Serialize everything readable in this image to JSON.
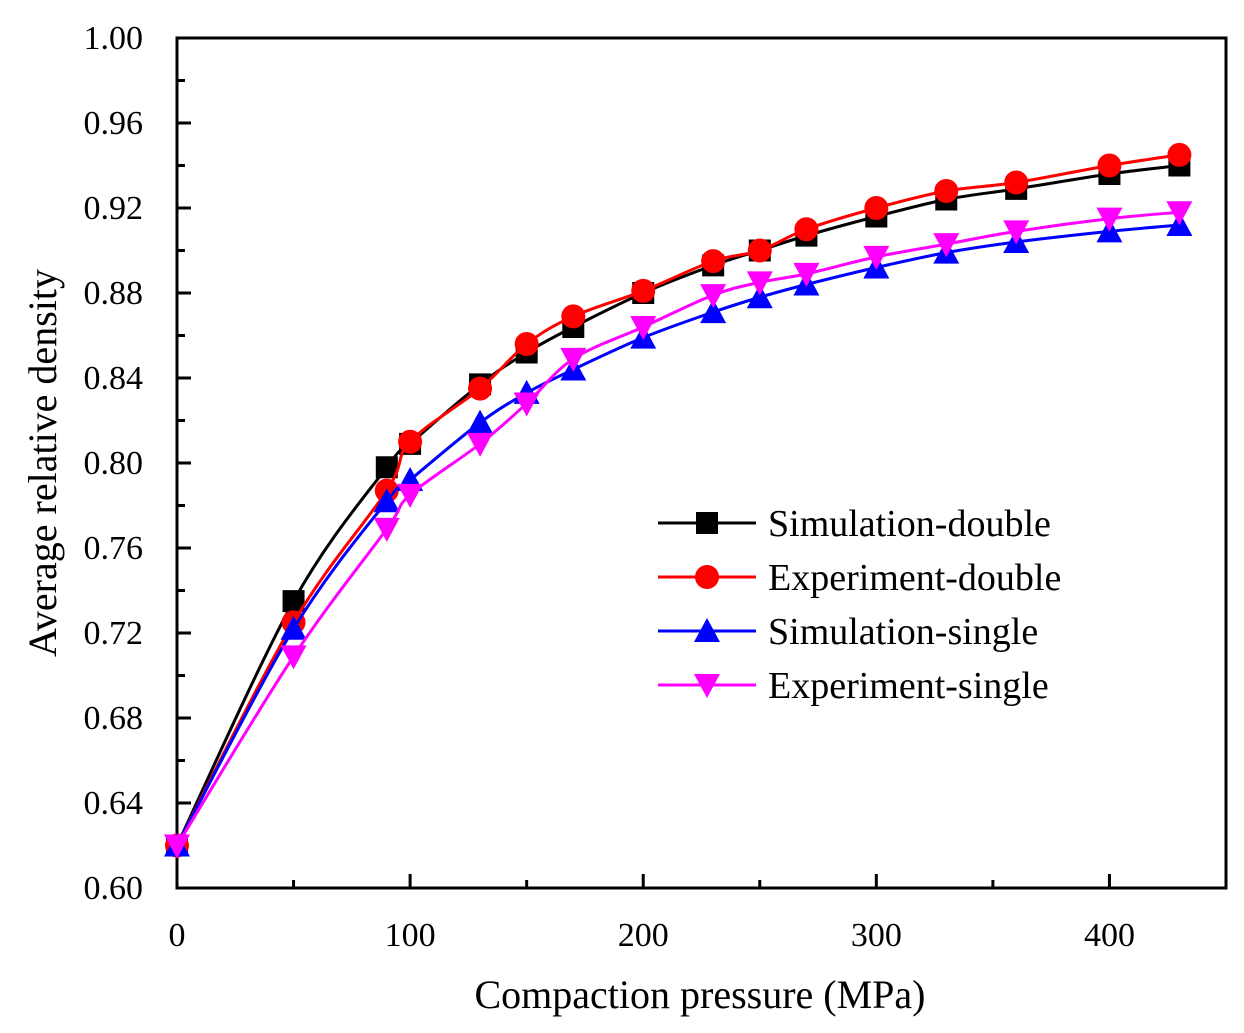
{
  "chart_data": {
    "type": "line",
    "title": "",
    "xlabel": "Compaction pressure (MPa)",
    "ylabel": "Average relative density",
    "xlim": [
      0,
      450
    ],
    "ylim": [
      0.6,
      1.0
    ],
    "x_ticks": [
      0,
      100,
      200,
      300,
      400
    ],
    "x_tick_labels": [
      "0",
      "100",
      "200",
      "300",
      "400"
    ],
    "y_ticks": [
      0.6,
      0.64,
      0.68,
      0.72,
      0.76,
      0.8,
      0.84,
      0.88,
      0.92,
      0.96,
      1.0
    ],
    "y_tick_labels": [
      "0.60",
      "0.64",
      "0.68",
      "0.72",
      "0.76",
      "0.80",
      "0.84",
      "0.88",
      "0.92",
      "0.96",
      "1.00"
    ],
    "grid": false,
    "legend_position": "right",
    "series": [
      {
        "name": "Simulation-double",
        "color": "#000000",
        "marker": "square",
        "x": [
          0,
          50,
          90,
          100,
          130,
          150,
          170,
          200,
          230,
          250,
          270,
          300,
          330,
          360,
          400,
          430
        ],
        "values": [
          0.62,
          0.735,
          0.798,
          0.809,
          0.837,
          0.852,
          0.864,
          0.88,
          0.893,
          0.9,
          0.907,
          0.916,
          0.924,
          0.929,
          0.936,
          0.94
        ]
      },
      {
        "name": "Experiment-double",
        "color": "#ff0000",
        "marker": "circle",
        "x": [
          0,
          50,
          90,
          100,
          130,
          150,
          170,
          200,
          230,
          250,
          270,
          300,
          330,
          360,
          400,
          430
        ],
        "values": [
          0.62,
          0.725,
          0.787,
          0.81,
          0.835,
          0.856,
          0.869,
          0.881,
          0.895,
          0.9,
          0.91,
          0.92,
          0.928,
          0.932,
          0.94,
          0.945
        ]
      },
      {
        "name": "Simulation-single",
        "color": "#0000ff",
        "marker": "triangle-up",
        "x": [
          0,
          50,
          90,
          100,
          130,
          150,
          170,
          200,
          230,
          250,
          270,
          300,
          330,
          360,
          400,
          430
        ],
        "values": [
          0.62,
          0.722,
          0.782,
          0.792,
          0.819,
          0.833,
          0.844,
          0.859,
          0.871,
          0.878,
          0.884,
          0.892,
          0.899,
          0.904,
          0.909,
          0.912
        ]
      },
      {
        "name": "Experiment-single",
        "color": "#ff00ff",
        "marker": "triangle-down",
        "x": [
          0,
          50,
          90,
          100,
          130,
          150,
          170,
          200,
          230,
          250,
          270,
          300,
          330,
          360,
          400,
          430
        ],
        "values": [
          0.62,
          0.709,
          0.769,
          0.785,
          0.809,
          0.828,
          0.849,
          0.864,
          0.879,
          0.885,
          0.889,
          0.897,
          0.903,
          0.909,
          0.915,
          0.918
        ]
      }
    ]
  }
}
